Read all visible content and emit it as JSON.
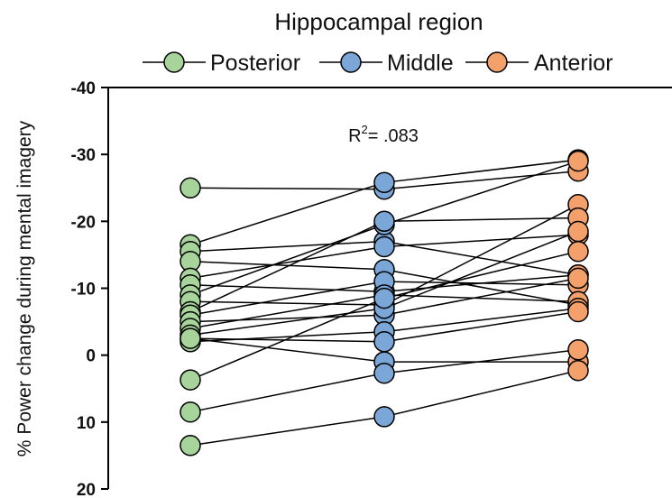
{
  "chart_data": {
    "type": "line",
    "title": "Hippocampal region",
    "ylabel": "% Power change during mental imagery",
    "xlabel": "",
    "ylim": [
      20,
      -40
    ],
    "y_inverted": true,
    "yticks": [
      -40,
      -30,
      -20,
      -10,
      0,
      10,
      20
    ],
    "ytick_labels": [
      "-40",
      "-30",
      "-20",
      "-10",
      "0",
      "10",
      "20"
    ],
    "categories": [
      "Posterior",
      "Middle",
      "Anterior"
    ],
    "colors": {
      "Posterior": "#a6d49a",
      "Middle": "#7ba7d8",
      "Anterior": "#f4a06a"
    },
    "legend": {
      "placement": "top",
      "entries": [
        "Posterior",
        "Middle",
        "Anterior"
      ]
    },
    "annotation": {
      "prefix": "R",
      "sup": "2",
      "suffix": "= .083"
    },
    "grid": false,
    "subjects": [
      [
        -25.0,
        -24.8,
        -27.5
      ],
      [
        -16.5,
        -25.8,
        -29.2
      ],
      [
        -15.5,
        -17.0,
        -12.0
      ],
      [
        -14.0,
        -12.8,
        -7.5
      ],
      [
        -11.5,
        -16.2,
        -18.0
      ],
      [
        -10.5,
        -9.5,
        -12.0
      ],
      [
        -9.0,
        -19.5,
        -29.0
      ],
      [
        -8.0,
        -7.5,
        -22.5
      ],
      [
        -6.5,
        -20.0,
        -20.5
      ],
      [
        -6.0,
        -11.0,
        -10.5
      ],
      [
        -5.0,
        -6.0,
        -11.5
      ],
      [
        -4.0,
        -9.0,
        -8.0
      ],
      [
        -3.0,
        -7.0,
        -18.5
      ],
      [
        -2.5,
        1.0,
        1.0
      ],
      [
        -2.0,
        -3.5,
        -7.0
      ],
      [
        -2.5,
        -2.0,
        -6.5
      ],
      [
        3.7,
        -8.5,
        -15.5
      ],
      [
        8.5,
        2.7,
        -0.8
      ],
      [
        13.5,
        9.2,
        2.3
      ]
    ]
  }
}
